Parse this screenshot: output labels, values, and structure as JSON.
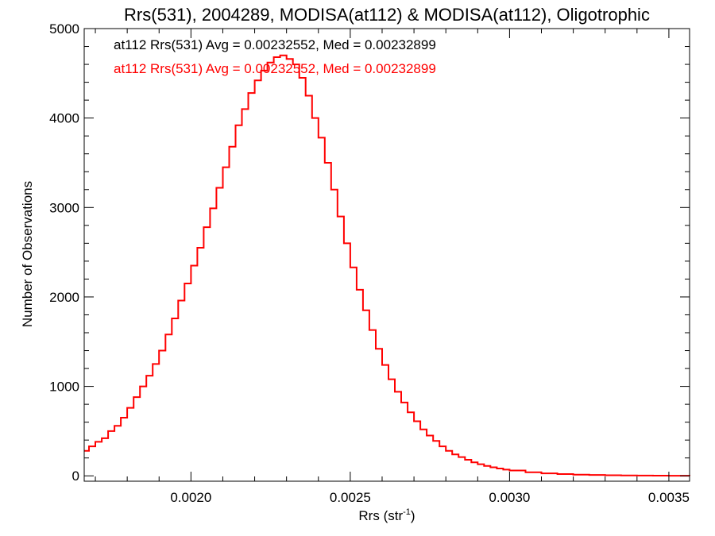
{
  "chart_data": {
    "type": "line",
    "title": "Rrs(531), 2004289, MODISA(at112) & MODISA(at112), Oligotrophic",
    "xlabel_main": "Rrs (str",
    "xlabel_sup": "-1",
    "xlabel_close": ")",
    "ylabel": "Number of Observations",
    "xlim": [
      0.001665,
      0.003565
    ],
    "ylim": [
      -60,
      5000
    ],
    "x_ticks": [
      "0.0020",
      "0.0025",
      "0.0030",
      "0.0035"
    ],
    "x_tick_values": [
      0.002,
      0.0025,
      0.003,
      0.0035
    ],
    "y_ticks": [
      "0",
      "1000",
      "2000",
      "3000",
      "4000",
      "5000"
    ],
    "y_tick_values": [
      0,
      1000,
      2000,
      3000,
      4000,
      5000
    ],
    "grid": false,
    "legend": [
      {
        "text": "at112 Rrs(531) Avg = 0.00232552, Med = 0.00232899",
        "color": "#000000"
      },
      {
        "text": "at112 Rrs(531) Avg = 0.00232552, Med = 0.00232899",
        "color": "#ff0000"
      }
    ],
    "legend_position": "top-left",
    "series": [
      {
        "color": "#ff0000",
        "step": true,
        "x": [
          0.001665,
          0.00168,
          0.0017,
          0.00172,
          0.00174,
          0.00176,
          0.00178,
          0.0018,
          0.00182,
          0.00184,
          0.00186,
          0.00188,
          0.0019,
          0.00192,
          0.00194,
          0.00196,
          0.00198,
          0.002,
          0.00202,
          0.00204,
          0.00206,
          0.00208,
          0.0021,
          0.00212,
          0.00214,
          0.00216,
          0.00218,
          0.0022,
          0.00222,
          0.00224,
          0.00226,
          0.00228,
          0.0023,
          0.00232,
          0.00234,
          0.00236,
          0.00238,
          0.0024,
          0.00242,
          0.00244,
          0.00246,
          0.00248,
          0.0025,
          0.00252,
          0.00254,
          0.00256,
          0.00258,
          0.0026,
          0.00262,
          0.00264,
          0.00266,
          0.00268,
          0.0027,
          0.00272,
          0.00274,
          0.00276,
          0.00278,
          0.0028,
          0.00282,
          0.00284,
          0.00286,
          0.00288,
          0.0029,
          0.00292,
          0.00294,
          0.00296,
          0.00298,
          0.003,
          0.00305,
          0.0031,
          0.00315,
          0.0032,
          0.00325,
          0.0033,
          0.00335,
          0.0034,
          0.00345,
          0.0035,
          0.003565
        ],
        "y": [
          280,
          330,
          380,
          420,
          500,
          560,
          650,
          760,
          880,
          1000,
          1120,
          1250,
          1400,
          1580,
          1760,
          1960,
          2150,
          2350,
          2550,
          2780,
          2990,
          3220,
          3450,
          3680,
          3920,
          4100,
          4280,
          4420,
          4530,
          4620,
          4680,
          4700,
          4660,
          4600,
          4450,
          4250,
          4000,
          3780,
          3500,
          3200,
          2900,
          2600,
          2330,
          2080,
          1850,
          1630,
          1420,
          1240,
          1080,
          940,
          820,
          710,
          610,
          520,
          450,
          390,
          330,
          280,
          240,
          210,
          180,
          150,
          130,
          110,
          95,
          82,
          70,
          60,
          40,
          28,
          20,
          14,
          10,
          7,
          5,
          3,
          2,
          1,
          0
        ]
      }
    ]
  }
}
